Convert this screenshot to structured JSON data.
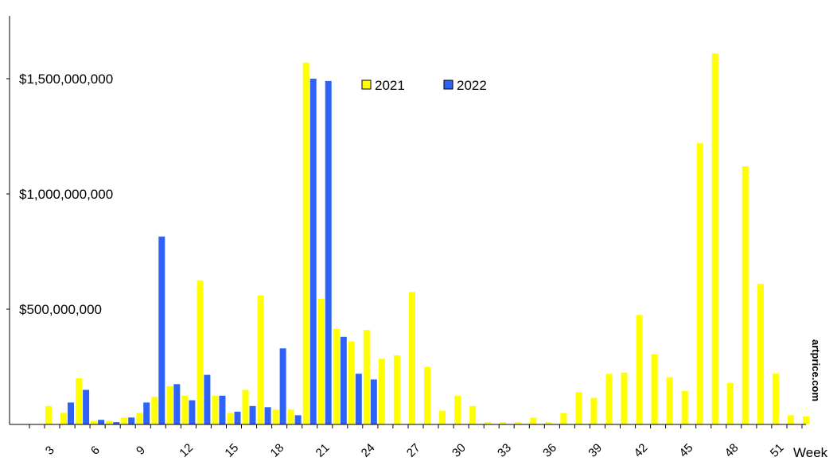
{
  "chart_data": {
    "type": "bar",
    "xlabel": "Week",
    "ylim": [
      0,
      1700000000
    ],
    "ytick_values": [
      500000000,
      1000000000,
      1500000000
    ],
    "ytick_labels": [
      "$500,000,000",
      "$1,000,000,000",
      "$1,500,000,000"
    ],
    "x_first": 1,
    "x_last": 52,
    "x_tick_labels": [
      "3",
      "6",
      "9",
      "12",
      "15",
      "18",
      "21",
      "24",
      "27",
      "30",
      "33",
      "36",
      "39",
      "42",
      "45",
      "48",
      "51"
    ],
    "legend_position": "top-center",
    "series": [
      {
        "name": "2021",
        "color": "#ffff00",
        "points": [
          [
            2,
            80000000
          ],
          [
            3,
            50000000
          ],
          [
            4,
            200000000
          ],
          [
            5,
            15000000
          ],
          [
            6,
            15000000
          ],
          [
            7,
            30000000
          ],
          [
            8,
            50000000
          ],
          [
            9,
            120000000
          ],
          [
            10,
            165000000
          ],
          [
            11,
            125000000
          ],
          [
            12,
            625000000
          ],
          [
            13,
            125000000
          ],
          [
            14,
            50000000
          ],
          [
            15,
            150000000
          ],
          [
            16,
            560000000
          ],
          [
            17,
            65000000
          ],
          [
            18,
            65000000
          ],
          [
            19,
            1570000000
          ],
          [
            20,
            545000000
          ],
          [
            21,
            415000000
          ],
          [
            22,
            360000000
          ],
          [
            23,
            410000000
          ],
          [
            24,
            285000000
          ],
          [
            25,
            300000000
          ],
          [
            26,
            575000000
          ],
          [
            27,
            250000000
          ],
          [
            28,
            60000000
          ],
          [
            29,
            125000000
          ],
          [
            30,
            80000000
          ],
          [
            31,
            10000000
          ],
          [
            32,
            10000000
          ],
          [
            33,
            10000000
          ],
          [
            34,
            30000000
          ],
          [
            35,
            10000000
          ],
          [
            36,
            50000000
          ],
          [
            37,
            140000000
          ],
          [
            38,
            115000000
          ],
          [
            39,
            220000000
          ],
          [
            40,
            225000000
          ],
          [
            41,
            475000000
          ],
          [
            42,
            305000000
          ],
          [
            43,
            205000000
          ],
          [
            44,
            145000000
          ],
          [
            45,
            1220000000
          ],
          [
            46,
            1610000000
          ],
          [
            47,
            180000000
          ],
          [
            48,
            1120000000
          ],
          [
            49,
            610000000
          ],
          [
            50,
            220000000
          ],
          [
            51,
            40000000
          ],
          [
            52,
            35000000
          ]
        ]
      },
      {
        "name": "2022",
        "color": "#2f63f5",
        "points": [
          [
            3,
            95000000
          ],
          [
            4,
            150000000
          ],
          [
            5,
            20000000
          ],
          [
            6,
            10000000
          ],
          [
            7,
            30000000
          ],
          [
            8,
            95000000
          ],
          [
            9,
            815000000
          ],
          [
            10,
            175000000
          ],
          [
            11,
            105000000
          ],
          [
            12,
            215000000
          ],
          [
            13,
            125000000
          ],
          [
            14,
            55000000
          ],
          [
            15,
            80000000
          ],
          [
            16,
            75000000
          ],
          [
            17,
            330000000
          ],
          [
            18,
            40000000
          ],
          [
            19,
            1500000000
          ],
          [
            20,
            1490000000
          ],
          [
            21,
            380000000
          ],
          [
            22,
            220000000
          ],
          [
            23,
            195000000
          ]
        ]
      }
    ]
  },
  "watermark": "artprice.com"
}
